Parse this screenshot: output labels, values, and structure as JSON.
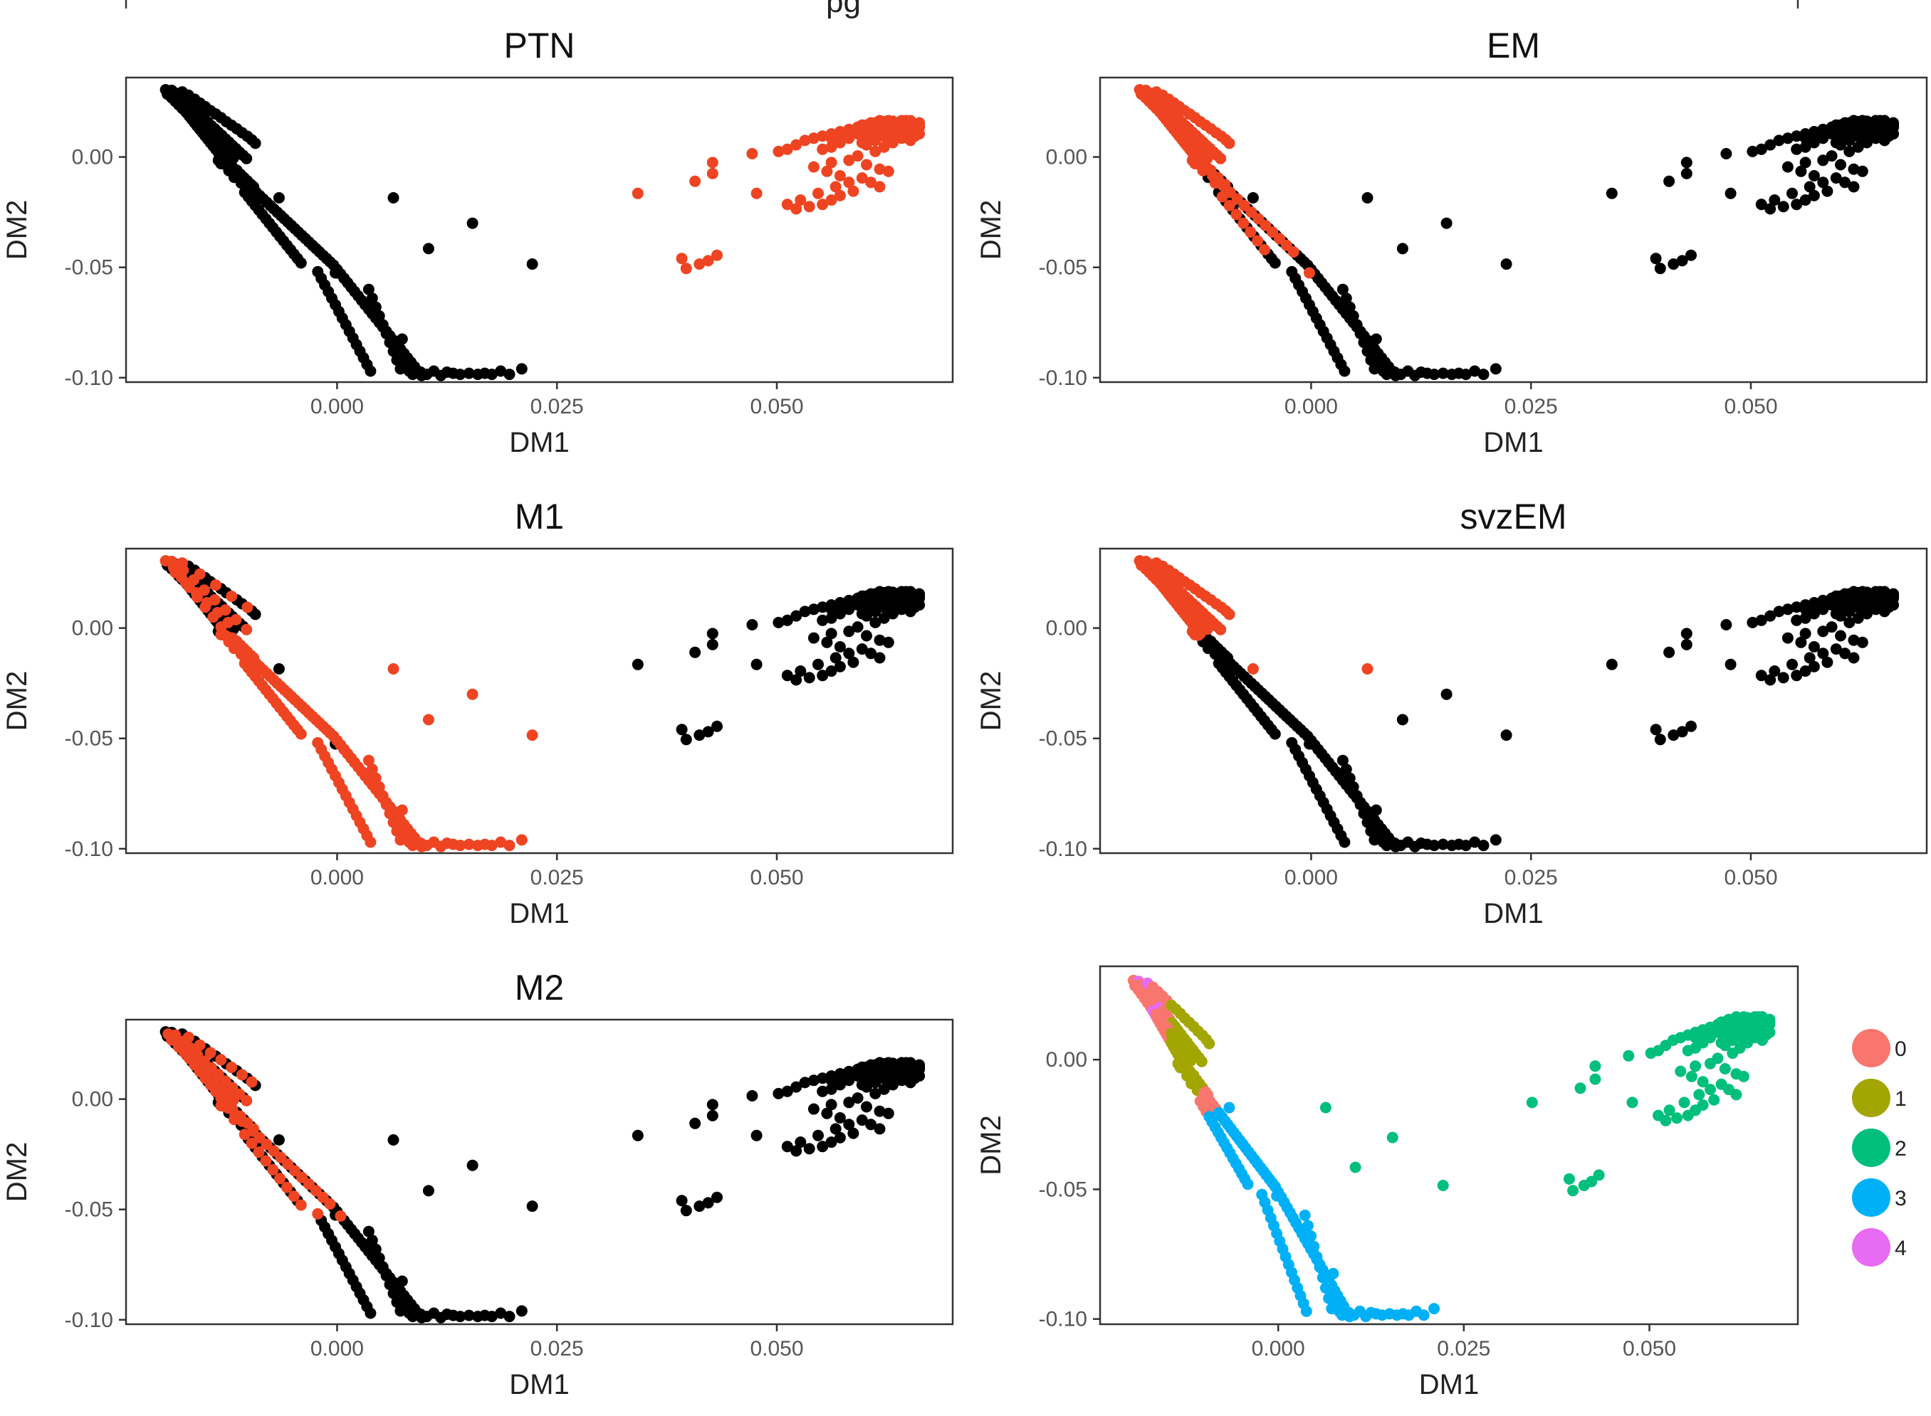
{
  "top_fragment": "pg",
  "colors": {
    "highlight": "#ee4422",
    "other": "#000000",
    "cluster": [
      "#F8766D",
      "#A3A500",
      "#00BF7D",
      "#00B0F6",
      "#E76BF3"
    ]
  },
  "chart_data": [
    {
      "type": "scatter",
      "title": "PTN",
      "xlabel": "DM1",
      "ylabel": "DM2",
      "xlim": [
        -0.024,
        0.07
      ],
      "ylim": [
        -0.102,
        0.036
      ],
      "xticks": [
        "0.000",
        "0.025",
        "0.050"
      ],
      "yticks": [
        "0.00",
        "-0.05",
        "-0.10"
      ],
      "highlight": "branch_right",
      "grid": false
    },
    {
      "type": "scatter",
      "title": "EM",
      "xlabel": "DM1",
      "ylabel": "DM2",
      "xlim": [
        -0.024,
        0.07
      ],
      "ylim": [
        -0.102,
        0.036
      ],
      "xticks": [
        "0.000",
        "0.025",
        "0.050"
      ],
      "yticks": [
        "0.00",
        "-0.05",
        "-0.10"
      ],
      "highlight": "stem_upper_mixed",
      "grid": false
    },
    {
      "type": "scatter",
      "title": "M1",
      "xlabel": "DM1",
      "ylabel": "DM2",
      "xlim": [
        -0.024,
        0.07
      ],
      "ylim": [
        -0.102,
        0.036
      ],
      "xticks": [
        "0.000",
        "0.025",
        "0.050"
      ],
      "yticks": [
        "0.00",
        "-0.05",
        "-0.10"
      ],
      "highlight": "stem_lower",
      "grid": false
    },
    {
      "type": "scatter",
      "title": "svzEM",
      "xlabel": "DM1",
      "ylabel": "DM2",
      "xlim": [
        -0.024,
        0.07
      ],
      "ylim": [
        -0.102,
        0.036
      ],
      "xticks": [
        "0.000",
        "0.025",
        "0.050"
      ],
      "yticks": [
        "0.00",
        "-0.05",
        "-0.10"
      ],
      "highlight": "stem_top",
      "grid": false
    },
    {
      "type": "scatter",
      "title": "M2",
      "xlabel": "DM1",
      "ylabel": "DM2",
      "xlim": [
        -0.024,
        0.07
      ],
      "ylim": [
        -0.102,
        0.036
      ],
      "xticks": [
        "0.000",
        "0.025",
        "0.050"
      ],
      "yticks": [
        "0.00",
        "-0.05",
        "-0.10"
      ],
      "highlight": "stem_mid",
      "grid": false
    },
    {
      "type": "scatter",
      "title": "",
      "xlabel": "DM1",
      "ylabel": "DM2",
      "xlim": [
        -0.024,
        0.07
      ],
      "ylim": [
        -0.102,
        0.036
      ],
      "xticks": [
        "0.000",
        "0.025",
        "0.050"
      ],
      "yticks": [
        "0.00",
        "-0.05",
        "-0.10"
      ],
      "color_by": "cluster",
      "grid": false,
      "legend": {
        "placement": "right",
        "entries": [
          "0",
          "1",
          "2",
          "3",
          "4"
        ]
      }
    }
  ],
  "points": {
    "stem": [
      [
        -0.0195,
        0.0305
      ],
      [
        -0.0192,
        0.0295
      ],
      [
        -0.0189,
        0.0285
      ],
      [
        -0.0186,
        0.0275
      ],
      [
        -0.0183,
        0.026
      ],
      [
        -0.018,
        0.0245
      ],
      [
        -0.0177,
        0.023
      ],
      [
        -0.0174,
        0.0215
      ],
      [
        -0.0171,
        0.02
      ],
      [
        -0.0168,
        0.0185
      ],
      [
        -0.0165,
        0.017
      ],
      [
        -0.0162,
        0.0155
      ],
      [
        -0.0159,
        0.014
      ],
      [
        -0.0156,
        0.0125
      ],
      [
        -0.0153,
        0.011
      ],
      [
        -0.015,
        0.0095
      ],
      [
        -0.0147,
        0.008
      ],
      [
        -0.0144,
        0.0065
      ],
      [
        -0.0141,
        0.005
      ],
      [
        -0.0138,
        0.0035
      ],
      [
        -0.0135,
        0.002
      ],
      [
        -0.0132,
        0.0005
      ],
      [
        -0.0129,
        -0.001
      ],
      [
        -0.0126,
        -0.0025
      ],
      [
        -0.0188,
        0.0302
      ],
      [
        -0.0184,
        0.029
      ],
      [
        -0.0179,
        0.0278
      ],
      [
        -0.0175,
        0.0262
      ],
      [
        -0.0171,
        0.0248
      ],
      [
        -0.0167,
        0.0232
      ],
      [
        -0.0163,
        0.0218
      ],
      [
        -0.0159,
        0.0202
      ],
      [
        -0.0155,
        0.0188
      ],
      [
        -0.0151,
        0.0172
      ],
      [
        -0.0147,
        0.0158
      ],
      [
        -0.0143,
        0.0142
      ],
      [
        -0.0139,
        0.0128
      ],
      [
        -0.0135,
        0.0112
      ],
      [
        -0.0131,
        0.0098
      ],
      [
        -0.0127,
        0.0082
      ],
      [
        -0.0123,
        0.0068
      ],
      [
        -0.0119,
        0.0052
      ],
      [
        -0.0115,
        0.0038
      ],
      [
        -0.0111,
        0.0022
      ],
      [
        -0.0107,
        0.0008
      ],
      [
        -0.0103,
        -0.0007
      ],
      [
        -0.0193,
        0.0285
      ],
      [
        -0.0188,
        0.0268
      ],
      [
        -0.0184,
        0.0252
      ],
      [
        -0.018,
        0.0236
      ],
      [
        -0.0176,
        0.022
      ],
      [
        -0.0172,
        0.0205
      ],
      [
        -0.0168,
        0.019
      ],
      [
        -0.0164,
        0.0175
      ],
      [
        -0.016,
        0.016
      ],
      [
        -0.0156,
        0.0145
      ],
      [
        -0.0152,
        0.013
      ],
      [
        -0.0148,
        0.0115
      ],
      [
        -0.0144,
        0.01
      ],
      [
        -0.014,
        0.0085
      ],
      [
        -0.0136,
        0.007
      ],
      [
        -0.0132,
        0.0055
      ],
      [
        -0.0128,
        0.004
      ],
      [
        -0.0124,
        0.0025
      ],
      [
        -0.0121,
        0.001
      ],
      [
        -0.0118,
        -0.0005
      ],
      [
        -0.0176,
        0.0295
      ],
      [
        -0.0169,
        0.028
      ],
      [
        -0.0162,
        0.0262
      ],
      [
        -0.0156,
        0.0245
      ],
      [
        -0.015,
        0.0228
      ],
      [
        -0.0144,
        0.021
      ],
      [
        -0.0138,
        0.0195
      ],
      [
        -0.0132,
        0.0178
      ],
      [
        -0.0126,
        0.016
      ],
      [
        -0.012,
        0.0144
      ],
      [
        -0.0114,
        0.0128
      ],
      [
        -0.0108,
        0.011
      ],
      [
        -0.0102,
        0.0094
      ],
      [
        -0.0097,
        0.0078
      ],
      [
        -0.0093,
        0.0062
      ],
      [
        -0.0124,
        -0.004
      ],
      [
        -0.012,
        -0.0055
      ],
      [
        -0.0116,
        -0.007
      ],
      [
        -0.0112,
        -0.0085
      ],
      [
        -0.0108,
        -0.01
      ],
      [
        -0.0104,
        -0.0115
      ],
      [
        -0.0119,
        -0.0045
      ],
      [
        -0.0114,
        -0.006
      ],
      [
        -0.011,
        -0.0078
      ],
      [
        -0.0106,
        -0.0093
      ],
      [
        -0.0102,
        -0.0108
      ],
      [
        -0.0098,
        -0.0124
      ],
      [
        -0.0128,
        -0.0032
      ],
      [
        -0.0123,
        -0.0062
      ],
      [
        -0.0117,
        -0.0092
      ],
      [
        -0.0109,
        -0.0118
      ],
      [
        -0.0095,
        -0.0135
      ],
      [
        -0.0135,
        -0.0015
      ],
      [
        -0.0132,
        -0.003
      ],
      [
        -0.01,
        -0.013
      ],
      [
        -0.0096,
        -0.0145
      ],
      [
        -0.0092,
        -0.016
      ],
      [
        -0.0088,
        -0.0175
      ],
      [
        -0.0084,
        -0.019
      ],
      [
        -0.008,
        -0.0205
      ],
      [
        -0.0076,
        -0.022
      ],
      [
        -0.0072,
        -0.0235
      ],
      [
        -0.0068,
        -0.025
      ],
      [
        -0.0064,
        -0.0265
      ],
      [
        -0.006,
        -0.028
      ],
      [
        -0.0056,
        -0.0295
      ],
      [
        -0.0052,
        -0.031
      ],
      [
        -0.0048,
        -0.0325
      ],
      [
        -0.0044,
        -0.034
      ],
      [
        -0.004,
        -0.0355
      ],
      [
        -0.0036,
        -0.037
      ],
      [
        -0.0032,
        -0.0385
      ],
      [
        -0.0028,
        -0.04
      ],
      [
        -0.0024,
        -0.0415
      ],
      [
        -0.002,
        -0.043
      ],
      [
        -0.0016,
        -0.0445
      ],
      [
        -0.0012,
        -0.046
      ],
      [
        -0.0008,
        -0.0475
      ],
      [
        -0.0004,
        -0.049
      ],
      [
        -0.0105,
        -0.016
      ],
      [
        -0.0101,
        -0.018
      ],
      [
        -0.0097,
        -0.02
      ],
      [
        -0.0093,
        -0.022
      ],
      [
        -0.0089,
        -0.024
      ],
      [
        -0.0085,
        -0.026
      ],
      [
        -0.0081,
        -0.028
      ],
      [
        -0.0077,
        -0.03
      ],
      [
        -0.0073,
        -0.032
      ],
      [
        -0.0069,
        -0.034
      ],
      [
        -0.0065,
        -0.036
      ],
      [
        -0.0061,
        -0.038
      ],
      [
        -0.0057,
        -0.04
      ],
      [
        -0.0053,
        -0.042
      ],
      [
        -0.0049,
        -0.044
      ],
      [
        -0.0045,
        -0.046
      ],
      [
        -0.0041,
        -0.048
      ],
      [
        0.0,
        -0.051
      ],
      [
        0.0004,
        -0.053
      ],
      [
        0.0008,
        -0.055
      ],
      [
        0.0012,
        -0.057
      ],
      [
        0.0016,
        -0.059
      ],
      [
        0.002,
        -0.061
      ],
      [
        0.0024,
        -0.063
      ],
      [
        0.0028,
        -0.065
      ],
      [
        0.0032,
        -0.067
      ],
      [
        0.0036,
        -0.069
      ],
      [
        0.004,
        -0.071
      ],
      [
        0.0044,
        -0.073
      ],
      [
        0.0048,
        -0.075
      ],
      [
        0.0052,
        -0.077
      ],
      [
        0.0056,
        -0.079
      ],
      [
        0.006,
        -0.081
      ],
      [
        0.0064,
        -0.083
      ],
      [
        0.0068,
        -0.085
      ],
      [
        0.0072,
        -0.087
      ],
      [
        0.0076,
        -0.089
      ],
      [
        0.008,
        -0.091
      ],
      [
        0.0084,
        -0.093
      ],
      [
        0.0088,
        -0.095
      ],
      [
        0.0092,
        -0.097
      ],
      [
        0.0096,
        -0.099
      ],
      [
        -0.0022,
        -0.052
      ],
      [
        -0.0018,
        -0.055
      ],
      [
        -0.0014,
        -0.058
      ],
      [
        -0.001,
        -0.061
      ],
      [
        -0.0006,
        -0.064
      ],
      [
        -0.0002,
        -0.067
      ],
      [
        0.0002,
        -0.07
      ],
      [
        0.0006,
        -0.073
      ],
      [
        0.001,
        -0.076
      ],
      [
        0.0014,
        -0.079
      ],
      [
        0.0018,
        -0.082
      ],
      [
        0.0022,
        -0.085
      ],
      [
        0.0026,
        -0.088
      ],
      [
        0.003,
        -0.091
      ],
      [
        0.0034,
        -0.094
      ],
      [
        0.0038,
        -0.097
      ],
      [
        0.0036,
        -0.06
      ],
      [
        0.004,
        -0.064
      ],
      [
        0.0044,
        -0.068
      ],
      [
        0.0048,
        -0.072
      ],
      [
        0.0052,
        -0.076
      ],
      [
        0.0056,
        -0.08
      ],
      [
        0.006,
        -0.084
      ],
      [
        0.0064,
        -0.088
      ],
      [
        0.0068,
        -0.092
      ],
      [
        0.0072,
        -0.096
      ],
      [
        0.0078,
        -0.094
      ],
      [
        0.0082,
        -0.097
      ],
      [
        0.0086,
        -0.0985
      ],
      [
        0.0095,
        -0.0975
      ],
      [
        0.0102,
        -0.0985
      ],
      [
        0.011,
        -0.097
      ],
      [
        0.0118,
        -0.099
      ],
      [
        0.0125,
        -0.0975
      ],
      [
        0.0132,
        -0.098
      ],
      [
        0.014,
        -0.0985
      ],
      [
        0.015,
        -0.098
      ],
      [
        0.016,
        -0.0985
      ],
      [
        0.0168,
        -0.098
      ],
      [
        0.0176,
        -0.0985
      ],
      [
        0.0186,
        -0.097
      ],
      [
        0.0196,
        -0.0985
      ],
      [
        0.021,
        -0.096
      ]
    ],
    "stray": [
      [
        -0.0066,
        -0.0185
      ],
      [
        0.0064,
        -0.0185
      ],
      [
        0.0154,
        -0.03
      ],
      [
        0.0104,
        -0.0415
      ],
      [
        -0.0002,
        -0.0525
      ],
      [
        0.0222,
        -0.0485
      ],
      [
        0.0074,
        -0.0825
      ]
    ],
    "branch": [
      [
        0.0342,
        -0.0165
      ],
      [
        0.0392,
        -0.046
      ],
      [
        0.0397,
        -0.0505
      ],
      [
        0.0412,
        -0.0485
      ],
      [
        0.0422,
        -0.047
      ],
      [
        0.0432,
        -0.0445
      ],
      [
        0.0407,
        -0.011
      ],
      [
        0.0427,
        -0.0075
      ],
      [
        0.0427,
        -0.0025
      ],
      [
        0.0472,
        0.0015
      ],
      [
        0.0477,
        -0.0165
      ],
      [
        0.0502,
        0.0025
      ],
      [
        0.0512,
        0.0035
      ],
      [
        0.0522,
        0.0055
      ],
      [
        0.0532,
        0.0075
      ],
      [
        0.0542,
        0.0085
      ],
      [
        0.0552,
        0.0095
      ],
      [
        0.0562,
        0.0105
      ],
      [
        0.0572,
        0.0115
      ],
      [
        0.0582,
        0.0125
      ],
      [
        0.0592,
        0.0135
      ],
      [
        0.0602,
        0.0145
      ],
      [
        0.0612,
        0.0155
      ],
      [
        0.0622,
        0.016
      ],
      [
        0.0632,
        0.0162
      ],
      [
        0.0642,
        0.0165
      ],
      [
        0.0652,
        0.0165
      ],
      [
        0.0552,
        0.0035
      ],
      [
        0.0562,
        0.0045
      ],
      [
        0.0572,
        0.0065
      ],
      [
        0.0582,
        0.0085
      ],
      [
        0.0592,
        0.0105
      ],
      [
        0.0602,
        0.0115
      ],
      [
        0.0612,
        0.0125
      ],
      [
        0.0622,
        0.0135
      ],
      [
        0.0632,
        0.0145
      ],
      [
        0.0642,
        0.0135
      ],
      [
        0.0652,
        0.0145
      ],
      [
        0.0657,
        0.0125
      ],
      [
        0.0602,
        0.0055
      ],
      [
        0.0612,
        0.0075
      ],
      [
        0.0622,
        0.0095
      ],
      [
        0.0632,
        0.0105
      ],
      [
        0.0642,
        0.0115
      ],
      [
        0.0652,
        0.0105
      ],
      [
        0.0657,
        0.0095
      ],
      [
        0.0612,
        0.0025
      ],
      [
        0.0622,
        0.0045
      ],
      [
        0.0632,
        0.0065
      ],
      [
        0.0642,
        0.0085
      ],
      [
        0.0652,
        0.0075
      ],
      [
        0.0662,
        0.0105
      ],
      [
        0.0662,
        0.0135
      ],
      [
        0.0662,
        0.0155
      ],
      [
        0.0647,
        0.0155
      ],
      [
        0.0637,
        0.0125
      ],
      [
        0.0627,
        0.0115
      ],
      [
        0.0617,
        0.0105
      ],
      [
        0.0542,
        -0.0045
      ],
      [
        0.0562,
        -0.0025
      ],
      [
        0.0582,
        -0.0015
      ],
      [
        0.0592,
        0.0005
      ],
      [
        0.0602,
        -0.0035
      ],
      [
        0.0617,
        -0.0055
      ],
      [
        0.0627,
        -0.0065
      ],
      [
        0.0597,
        -0.0095
      ],
      [
        0.0607,
        -0.0115
      ],
      [
        0.0617,
        -0.0135
      ],
      [
        0.0587,
        -0.0155
      ],
      [
        0.0572,
        -0.0175
      ],
      [
        0.0562,
        -0.0195
      ],
      [
        0.0552,
        -0.0215
      ],
      [
        0.0537,
        -0.0225
      ],
      [
        0.0522,
        -0.0235
      ],
      [
        0.0512,
        -0.0215
      ],
      [
        0.0527,
        -0.0195
      ],
      [
        0.0547,
        -0.0165
      ],
      [
        0.0567,
        -0.0135
      ],
      [
        0.0582,
        -0.0115
      ],
      [
        0.0572,
        -0.0085
      ],
      [
        0.0557,
        -0.0065
      ],
      [
        0.0592,
        0.0125
      ],
      [
        0.0582,
        0.0105
      ],
      [
        0.0572,
        0.0095
      ],
      [
        0.0562,
        0.0085
      ],
      [
        0.0602,
        0.0095
      ],
      [
        0.0612,
        0.0135
      ],
      [
        0.0622,
        0.0145
      ],
      [
        0.0632,
        0.0135
      ],
      [
        0.0642,
        0.0145
      ],
      [
        0.0652,
        0.0135
      ],
      [
        0.0597,
        0.0065
      ],
      [
        0.0607,
        0.0085
      ],
      [
        0.0617,
        0.0095
      ],
      [
        0.0627,
        0.0075
      ],
      [
        0.0637,
        0.0095
      ],
      [
        0.0647,
        0.0105
      ],
      [
        0.0657,
        0.0115
      ],
      [
        0.0662,
        0.0145
      ],
      [
        0.0647,
        0.0165
      ],
      [
        0.0637,
        0.0155
      ],
      [
        0.0627,
        0.0165
      ],
      [
        0.0617,
        0.0165
      ],
      [
        0.0607,
        0.0155
      ],
      [
        0.0597,
        0.0145
      ]
    ]
  }
}
